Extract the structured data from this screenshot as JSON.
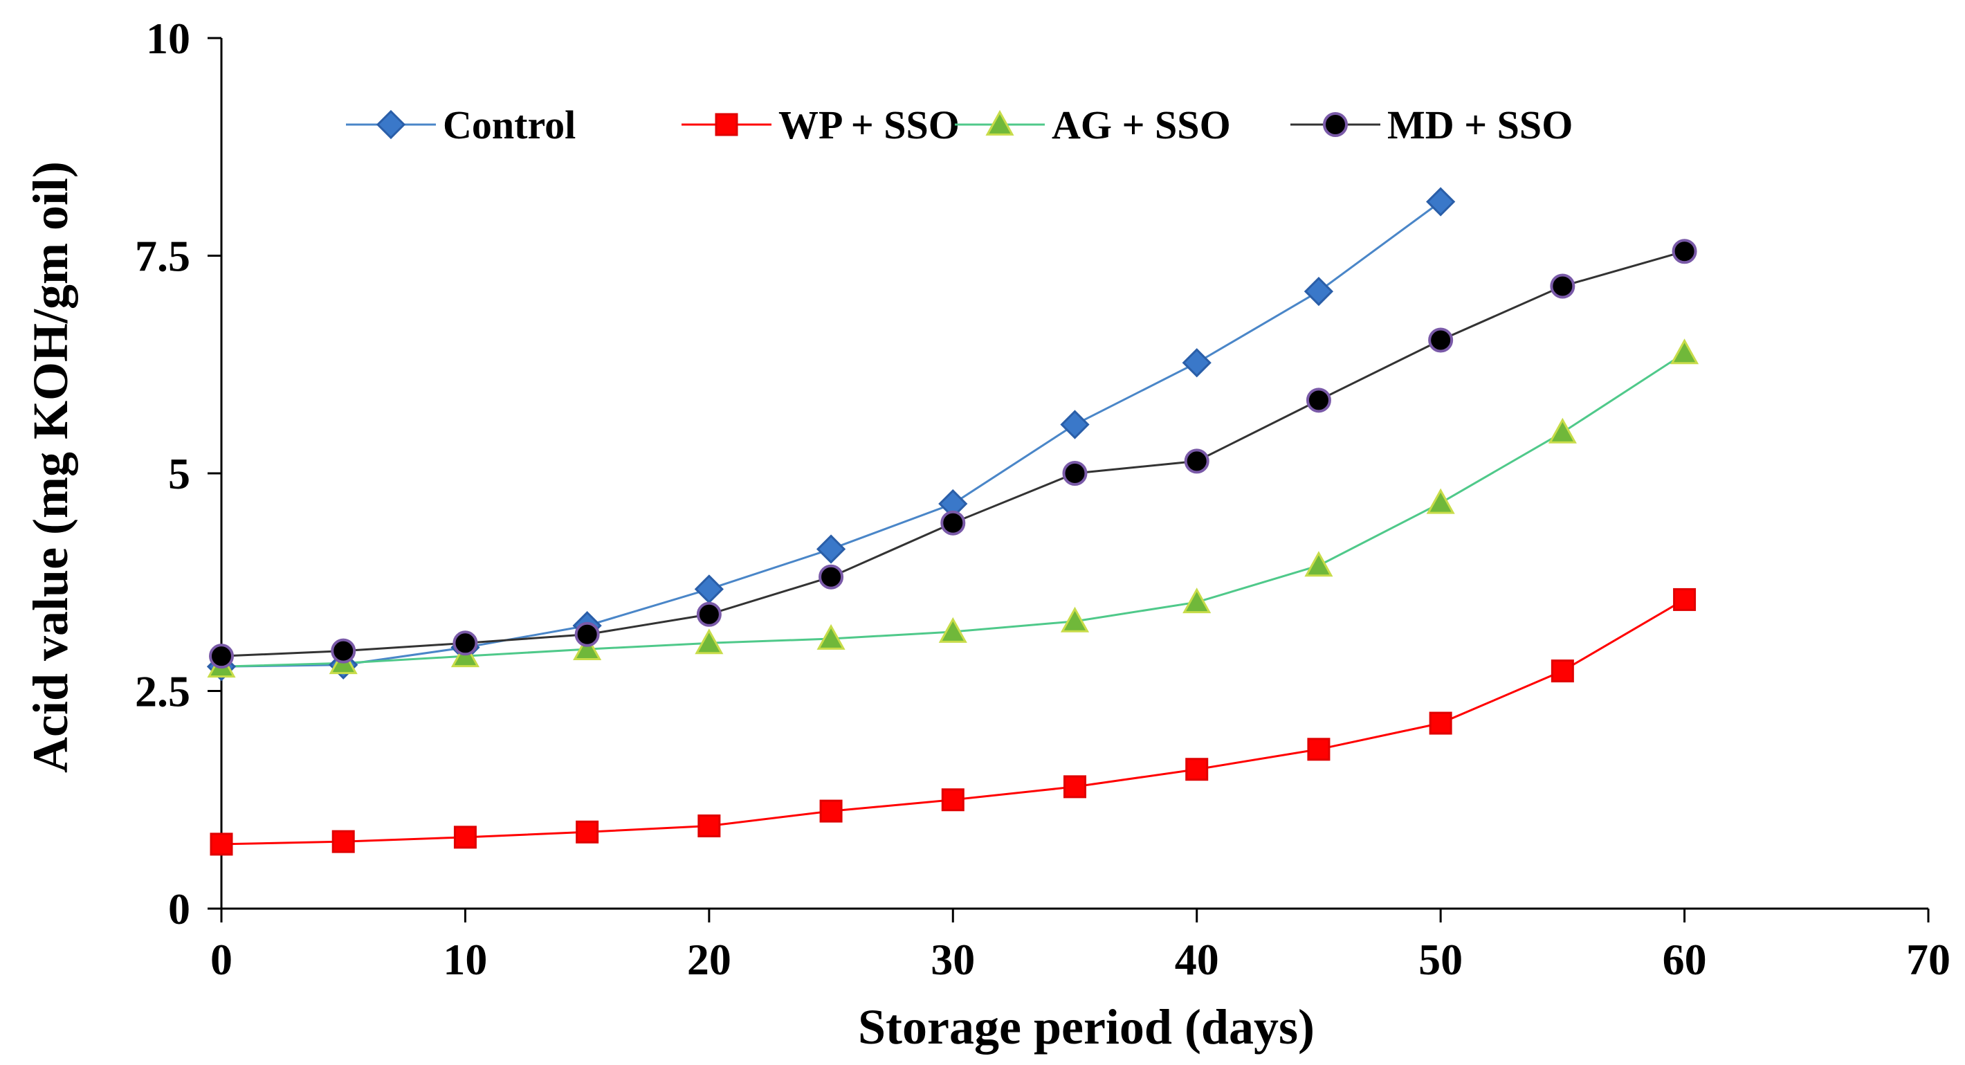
{
  "chart_data": {
    "type": "line",
    "title": "",
    "xlabel": "Storage period (days)",
    "ylabel": "Acid value (mg KOH/gm oil)",
    "xlim": [
      0,
      70
    ],
    "ylim": [
      0,
      10
    ],
    "xticks": [
      0,
      10,
      20,
      30,
      40,
      50,
      60,
      70
    ],
    "yticks": [
      0,
      2.5,
      5,
      7.5,
      10
    ],
    "xtick_labels": [
      "0",
      "10",
      "20",
      "30",
      "40",
      "50",
      "60",
      "70"
    ],
    "ytick_labels": [
      "0",
      "2.5",
      "5",
      "7.5",
      "10"
    ],
    "grid": false,
    "legend_position": "top",
    "series": [
      {
        "name": "Control",
        "color": "#4a86c8",
        "marker_fill": "#3a78c9",
        "marker_stroke": "#2a5ea8",
        "marker": "diamond",
        "x": [
          0,
          5,
          10,
          15,
          20,
          25,
          30,
          35,
          40,
          45,
          50
        ],
        "values": [
          2.78,
          2.8,
          3.0,
          3.25,
          3.67,
          4.13,
          4.65,
          5.56,
          6.27,
          7.09,
          8.12
        ]
      },
      {
        "name": "WP + SSO",
        "color": "#ff0000",
        "marker_fill": "#ff0000",
        "marker_stroke": "#e00000",
        "marker": "square",
        "x": [
          0,
          5,
          10,
          15,
          20,
          25,
          30,
          35,
          40,
          45,
          50,
          55,
          60
        ],
        "values": [
          0.74,
          0.77,
          0.82,
          0.88,
          0.95,
          1.12,
          1.25,
          1.4,
          1.6,
          1.83,
          2.13,
          2.73,
          3.55
        ]
      },
      {
        "name": "AG + SSO",
        "color": "#4fc98a",
        "marker_fill": "#70b83a",
        "marker_stroke": "#c8dc4a",
        "marker": "triangle",
        "x": [
          0,
          5,
          10,
          15,
          20,
          25,
          30,
          35,
          40,
          45,
          50,
          55,
          60
        ],
        "values": [
          2.78,
          2.82,
          2.9,
          2.98,
          3.05,
          3.1,
          3.18,
          3.3,
          3.52,
          3.94,
          4.66,
          5.47,
          6.38
        ]
      },
      {
        "name": "MD + SSO",
        "color": "#333333",
        "marker_fill": "#000000",
        "marker_stroke": "#7a5aa8",
        "marker": "circle",
        "x": [
          0,
          5,
          10,
          15,
          20,
          25,
          30,
          35,
          40,
          45,
          50,
          55,
          60
        ],
        "values": [
          2.9,
          2.96,
          3.05,
          3.15,
          3.38,
          3.81,
          4.43,
          5.0,
          5.14,
          5.84,
          6.53,
          7.15,
          7.55
        ]
      }
    ]
  }
}
